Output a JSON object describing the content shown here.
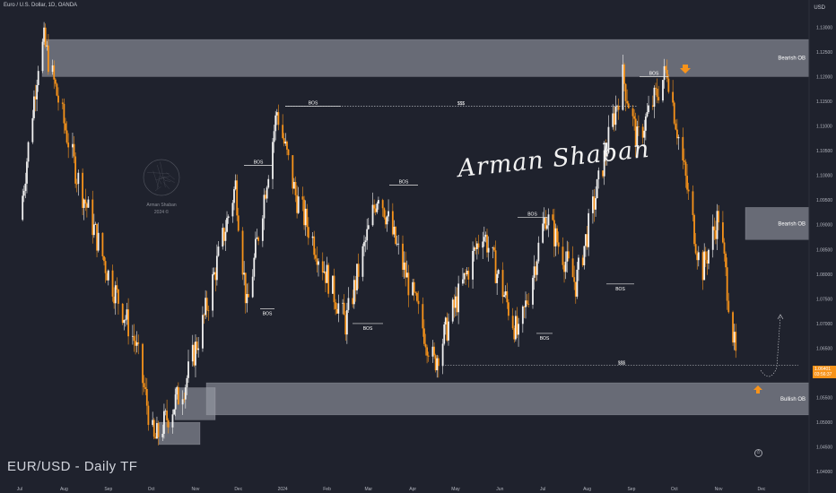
{
  "header": {
    "symbol_title": "Euro / U.S. Dollar, 1D, OANDA",
    "currency": "USD"
  },
  "footer": {
    "label": "EUR/USD - Daily  TF"
  },
  "watermark": {
    "author": "Arman Shaban",
    "sub": "2024 ©"
  },
  "signature": "Arman Shaban",
  "last_price": {
    "value": "1.06401",
    "countdown": "03:56:37"
  },
  "colors": {
    "background": "#1f222d",
    "up": "#f2f2f2",
    "down": "#f7931a",
    "zone": "#9a9ca6",
    "arrow": "#f7931a"
  },
  "icons": {
    "tv": "clock-icon"
  },
  "chart_data": {
    "type": "candlestick",
    "title": "EUR/USD - Daily  TF",
    "ylim": [
      1.0375,
      1.1355
    ],
    "y_ticks": [
      "1.13000",
      "1.12500",
      "1.12000",
      "1.11500",
      "1.11000",
      "1.10500",
      "1.10000",
      "1.09500",
      "1.09000",
      "1.08500",
      "1.08000",
      "1.07500",
      "1.07000",
      "1.06500",
      "1.06000",
      "1.05500",
      "1.05000",
      "1.04500",
      "1.04000"
    ],
    "x_ticks": [
      "Jul",
      "Aug",
      "Sep",
      "Oct",
      "Nov",
      "Dec",
      "2024",
      "Feb",
      "Mar",
      "Apr",
      "May",
      "Jun",
      "Jul",
      "Aug",
      "Sep",
      "Oct",
      "Nov",
      "Dec"
    ],
    "price_path": [
      {
        "date": "2023-07-01",
        "value": 1.091
      },
      {
        "date": "2023-07-14",
        "value": 1.123
      },
      {
        "date": "2023-07-18",
        "value": 1.127
      },
      {
        "date": "2023-08-10",
        "value": 1.1
      },
      {
        "date": "2023-09-01",
        "value": 1.08
      },
      {
        "date": "2023-09-20",
        "value": 1.066
      },
      {
        "date": "2023-10-03",
        "value": 1.046
      },
      {
        "date": "2023-10-25",
        "value": 1.058
      },
      {
        "date": "2023-11-06",
        "value": 1.07
      },
      {
        "date": "2023-11-29",
        "value": 1.098
      },
      {
        "date": "2023-12-07",
        "value": 1.073
      },
      {
        "date": "2023-12-28",
        "value": 1.113
      },
      {
        "date": "2024-01-10",
        "value": 1.096
      },
      {
        "date": "2024-02-14",
        "value": 1.07
      },
      {
        "date": "2024-03-08",
        "value": 1.097
      },
      {
        "date": "2024-04-16",
        "value": 1.062
      },
      {
        "date": "2024-05-20",
        "value": 1.089
      },
      {
        "date": "2024-06-14",
        "value": 1.067
      },
      {
        "date": "2024-07-03",
        "value": 1.092
      },
      {
        "date": "2024-07-24",
        "value": 1.078
      },
      {
        "date": "2024-08-26",
        "value": 1.12
      },
      {
        "date": "2024-09-05",
        "value": 1.107
      },
      {
        "date": "2024-09-26",
        "value": 1.1215
      },
      {
        "date": "2024-10-20",
        "value": 1.08
      },
      {
        "date": "2024-11-01",
        "value": 1.092
      },
      {
        "date": "2024-11-13",
        "value": 1.063
      }
    ],
    "zones": [
      {
        "label": "Bearish OB",
        "y0": 1.12,
        "y1": 1.1275
      },
      {
        "label": "Bearish OB",
        "y0": 1.087,
        "y1": 1.0935
      },
      {
        "label": "Bullish OB",
        "y0": 1.0515,
        "y1": 1.058
      },
      {
        "label": "",
        "y0": 1.0505,
        "y1": 1.057
      },
      {
        "label": "",
        "y0": 1.0455,
        "y1": 1.05
      }
    ],
    "annotations": [
      {
        "label": "BOS",
        "price": 1.114
      },
      {
        "label": "BOS",
        "price": 1.102
      },
      {
        "label": "BOS",
        "price": 1.073
      },
      {
        "label": "BOS",
        "price": 1.07
      },
      {
        "label": "BOS",
        "price": 1.098
      },
      {
        "label": "BOS",
        "price": 1.0915
      },
      {
        "label": "BOS",
        "price": 1.068
      },
      {
        "label": "BOS",
        "price": 1.078
      },
      {
        "label": "BOS",
        "price": 1.12
      }
    ],
    "liquidity": [
      {
        "label": "$$$",
        "price": 1.114
      },
      {
        "label": "$$$",
        "price": 1.0615
      }
    ]
  }
}
